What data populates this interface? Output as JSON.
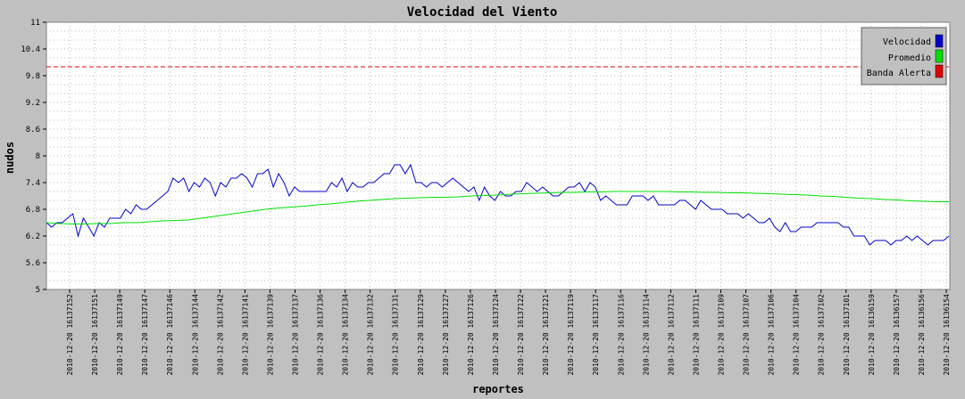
{
  "colors": {
    "background": "#c0c0c0",
    "plot_background": "#ffffff",
    "grid": "#b8b8b8",
    "velocidad": "#0000c8",
    "promedio": "#00e000",
    "banda_alerta": "#e00000"
  },
  "chart_data": {
    "type": "line",
    "title": "Velocidad del Viento",
    "xlabel": "reportes",
    "ylabel": "nudos",
    "ylim": [
      5,
      11
    ],
    "y_ticks": [
      "5",
      "5.6",
      "6.2",
      "6.8",
      "7.4",
      "8",
      "8.6",
      "9.2",
      "9.8",
      "10.4",
      "11"
    ],
    "grid": true,
    "legend_position": "top-right",
    "x_tick_labels": [
      "2010-12-20 16137152",
      "2010-12-20 16137151",
      "2010-12-20 16137149",
      "2010-12-20 16137147",
      "2010-12-20 16137146",
      "2010-12-20 16137144",
      "2010-12-20 16137142",
      "2010-12-20 16137141",
      "2010-12-20 16137139",
      "2010-12-20 16137137",
      "2010-12-20 16137136",
      "2010-12-20 16137134",
      "2010-12-20 16137132",
      "2010-12-20 16137131",
      "2010-12-20 16137129",
      "2010-12-20 16137127",
      "2010-12-20 16137126",
      "2010-12-20 16137124",
      "2010-12-20 16137122",
      "2010-12-20 16137121",
      "2010-12-20 16137119",
      "2010-12-20 16137117",
      "2010-12-20 16137116",
      "2010-12-20 16137114",
      "2010-12-20 16137112",
      "2010-12-20 16137111",
      "2010-12-20 16137109",
      "2010-12-20 16137107",
      "2010-12-20 16137106",
      "2010-12-20 16137104",
      "2010-12-20 16137102",
      "2010-12-20 16137101",
      "2010-12-20 16136159",
      "2010-12-20 16136157",
      "2010-12-20 16136156",
      "2010-12-20 16136154"
    ],
    "series": [
      {
        "name": "Velocidad",
        "values": [
          6.5,
          6.4,
          6.5,
          6.5,
          6.6,
          6.7,
          6.2,
          6.6,
          6.4,
          6.2,
          6.5,
          6.4,
          6.6,
          6.6,
          6.6,
          6.8,
          6.7,
          6.9,
          6.8,
          6.8,
          6.9,
          7.0,
          7.1,
          7.2,
          7.5,
          7.4,
          7.5,
          7.2,
          7.4,
          7.3,
          7.5,
          7.4,
          7.1,
          7.4,
          7.3,
          7.5,
          7.5,
          7.6,
          7.5,
          7.3,
          7.6,
          7.6,
          7.7,
          7.3,
          7.6,
          7.4,
          7.1,
          7.3,
          7.2,
          7.2,
          7.2,
          7.2,
          7.2,
          7.2,
          7.4,
          7.3,
          7.5,
          7.2,
          7.4,
          7.3,
          7.3,
          7.4,
          7.4,
          7.5,
          7.6,
          7.6,
          7.8,
          7.8,
          7.6,
          7.8,
          7.4,
          7.4,
          7.3,
          7.4,
          7.4,
          7.3,
          7.4,
          7.5,
          7.4,
          7.3,
          7.2,
          7.3,
          7.0,
          7.3,
          7.1,
          7.0,
          7.2,
          7.1,
          7.1,
          7.2,
          7.2,
          7.4,
          7.3,
          7.2,
          7.3,
          7.2,
          7.1,
          7.1,
          7.2,
          7.3,
          7.3,
          7.4,
          7.2,
          7.4,
          7.3,
          7.0,
          7.1,
          7.0,
          6.9,
          6.9,
          6.9,
          7.1,
          7.1,
          7.1,
          7.0,
          7.1,
          6.9,
          6.9,
          6.9,
          6.9,
          7.0,
          7.0,
          6.9,
          6.8,
          7.0,
          6.9,
          6.8,
          6.8,
          6.8,
          6.7,
          6.7,
          6.7,
          6.6,
          6.7,
          6.6,
          6.5,
          6.5,
          6.6,
          6.4,
          6.3,
          6.5,
          6.3,
          6.3,
          6.4,
          6.4,
          6.4,
          6.5,
          6.5,
          6.5,
          6.5,
          6.5,
          6.4,
          6.4,
          6.2,
          6.2,
          6.2,
          6.0,
          6.1,
          6.1,
          6.1,
          6.0,
          6.1,
          6.1,
          6.2,
          6.1,
          6.2,
          6.1,
          6.0,
          6.1,
          6.1,
          6.1,
          6.2
        ]
      },
      {
        "name": "Promedio",
        "values": [
          6.5,
          6.48,
          6.47,
          6.47,
          6.48,
          6.48,
          6.5,
          6.5,
          6.52,
          6.54,
          6.55,
          6.56,
          6.6,
          6.64,
          6.68,
          6.72,
          6.76,
          6.8,
          6.83,
          6.85,
          6.87,
          6.9,
          6.92,
          6.95,
          6.98,
          7.0,
          7.02,
          7.04,
          7.05,
          7.06,
          7.07,
          7.07,
          7.08,
          7.1,
          7.11,
          7.12,
          7.14,
          7.15,
          7.16,
          7.17,
          7.18,
          7.18,
          7.19,
          7.19,
          7.2,
          7.2,
          7.2,
          7.2,
          7.2,
          7.19,
          7.19,
          7.18,
          7.18,
          7.17,
          7.17,
          7.16,
          7.15,
          7.14,
          7.13,
          7.12,
          7.1,
          7.09,
          7.07,
          7.05,
          7.04,
          7.02,
          7.01,
          6.99,
          6.98,
          6.97,
          6.97
        ]
      },
      {
        "name": "Banda Alerta",
        "values": [
          10.0,
          10.0
        ]
      }
    ]
  }
}
